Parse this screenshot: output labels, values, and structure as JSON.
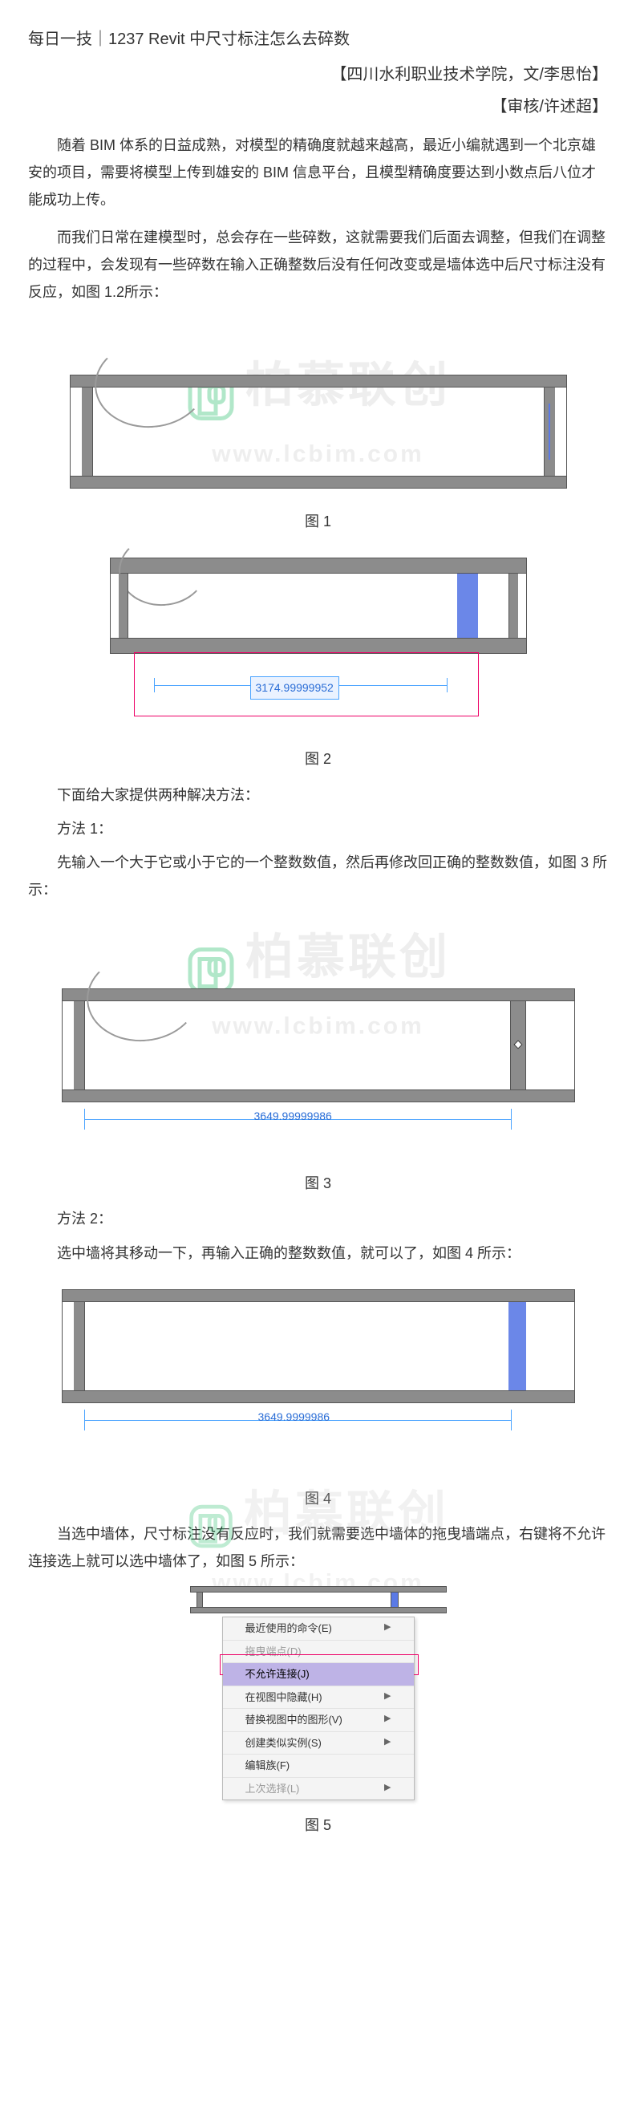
{
  "header": {
    "title": "每日一技｜1237 Revit 中尺寸标注怎么去碎数",
    "byline": "【四川水利职业技术学院，文/李思怡】",
    "reviewer": "【审核/许述超】"
  },
  "paragraphs": {
    "p1": "随着 BIM 体系的日益成熟，对模型的精确度就越来越高，最近小编就遇到一个北京雄安的项目，需要将模型上传到雄安的 BIM 信息平台，且模型精确度要达到小数点后八位才能成功上传。",
    "p2": "而我们日常在建模型时，总会存在一些碎数，这就需要我们后面去调整，但我们在调整的过程中，会发现有一些碎数在输入正确整数后没有任何改变或是墙体选中后尺寸标注没有反应，如图 1.2所示：",
    "intro_methods": "下面给大家提供两种解决方法：",
    "m1_h": "方法 1：",
    "m1_body": "先输入一个大于它或小于它的一个整数数值，然后再修改回正确的整数数值，如图 3 所示：",
    "m2_h": "方法 2：",
    "m2_body": "选中墙将其移动一下，再输入正确的整数数值，就可以了，如图 4 所示：",
    "p_after4": "当选中墙体，尺寸标注没有反应时，我们就需要选中墙体的拖曳墙端点，右键将不允许连接选上就可以选中墙体了，如图 5 所示："
  },
  "captions": {
    "f1": "图 1",
    "f2": "图 2",
    "f3": "图 3",
    "f4": "图 4",
    "f5": "图 5"
  },
  "dimensions": {
    "fig2_value": "3174.99999952",
    "fig3_value": "3649.99999986",
    "fig4_value": "3649.9999986"
  },
  "watermark": {
    "cn": "柏慕联创",
    "en": "www.lcbim.com"
  },
  "context_menu": {
    "items": [
      {
        "label": "最近使用的命令(E)",
        "arrow": true
      },
      {
        "label": "拖曳端点(D)",
        "disabled": true
      },
      {
        "label": "不允许连接(J)",
        "highlight": true
      },
      {
        "label": "在视图中隐藏(H)",
        "arrow": true
      },
      {
        "label": "替换视图中的图形(V)",
        "arrow": true
      },
      {
        "label": "创建类似实例(S)",
        "arrow": true
      },
      {
        "label": "编辑族(F)"
      },
      {
        "label": "上次选择(L)",
        "disabled": true,
        "arrow": true
      }
    ]
  },
  "colors": {
    "beam": "#8c8c8c",
    "select": "#5b7ae6",
    "dim": "#4aa3ff",
    "highlight_row": "#beb3e6",
    "red_box": "#e06"
  }
}
